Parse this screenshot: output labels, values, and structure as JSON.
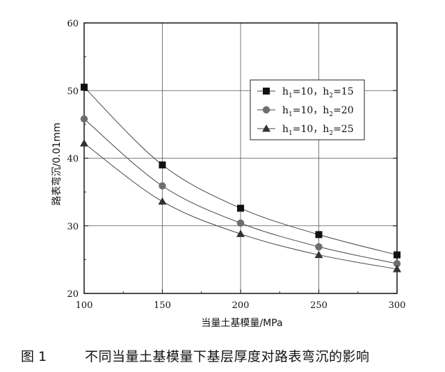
{
  "chart_data": {
    "type": "line",
    "x": [
      100,
      150,
      200,
      250,
      300
    ],
    "series": [
      {
        "name_parts": {
          "h1": "10",
          "h2": "15"
        },
        "marker": "square",
        "color": "#111111",
        "values": [
          50.5,
          39.0,
          32.6,
          28.7,
          25.7
        ]
      },
      {
        "name_parts": {
          "h1": "10",
          "h2": "20"
        },
        "marker": "circle",
        "color": "#6e6e6e",
        "values": [
          45.8,
          35.9,
          30.4,
          26.9,
          24.4
        ]
      },
      {
        "name_parts": {
          "h1": "10",
          "h2": "25"
        },
        "marker": "triangle",
        "color": "#333333",
        "values": [
          42.2,
          33.6,
          28.8,
          25.7,
          23.6
        ]
      }
    ],
    "xlabel": "当量土基模量/MPa",
    "ylabel": "路表弯沉/0.01mm",
    "xlim": [
      100,
      300
    ],
    "ylim": [
      20,
      60
    ],
    "xticks": [
      "100",
      "150",
      "200",
      "250",
      "300"
    ],
    "yticks": [
      "20",
      "30",
      "40",
      "50",
      "60"
    ],
    "grid": true,
    "legend_position": "top-right"
  },
  "caption": {
    "number": "图 1",
    "title": "不同当量土基模量下基层厚度对路表弯沉的影响"
  }
}
